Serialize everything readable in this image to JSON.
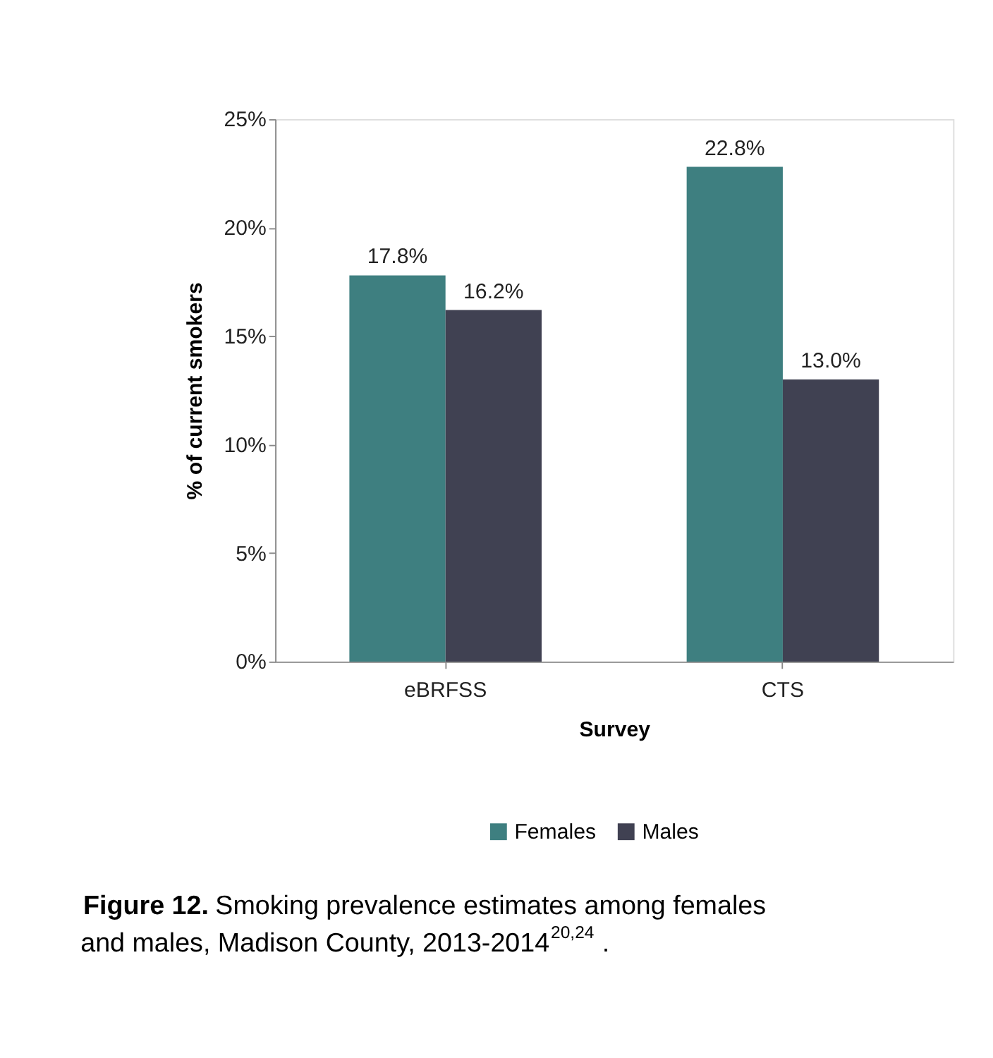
{
  "chart_data": {
    "type": "bar",
    "categories": [
      "eBRFSS",
      "CTS"
    ],
    "series": [
      {
        "name": "Females",
        "color": "#3e7f80",
        "values": [
          17.8,
          22.8
        ],
        "value_labels": [
          "17.8%",
          "22.8%"
        ]
      },
      {
        "name": "Males",
        "color": "#404152",
        "values": [
          16.2,
          13.0
        ],
        "value_labels": [
          "16.2%",
          "13.0%"
        ]
      }
    ],
    "xlabel": "Survey",
    "ylabel": "% of current smokers",
    "ylim": [
      0,
      25
    ],
    "yticks": [
      {
        "value": 0,
        "label": "0%"
      },
      {
        "value": 5,
        "label": "5%"
      },
      {
        "value": 10,
        "label": "10%"
      },
      {
        "value": 15,
        "label": "15%"
      },
      {
        "value": 20,
        "label": "20%"
      },
      {
        "value": 25,
        "label": "25%"
      }
    ],
    "grid": false,
    "legend": "bottom",
    "annotations": [
      "Figure 12. Smoking prevalence estimates among females and males, Madison County, 2013-2014$^{20,24}$."
    ]
  }
}
